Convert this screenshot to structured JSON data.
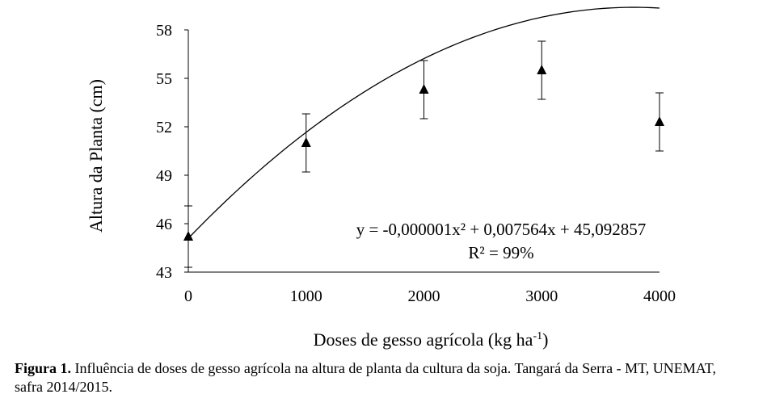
{
  "chart_data": {
    "type": "scatter",
    "xlabel": "Doses de gesso agrícola (kg ha",
    "xlabel_sup": "-1",
    "xlabel_end": ")",
    "ylabel": "Altura da Planta (cm)",
    "x_ticks": [
      0,
      1000,
      2000,
      3000,
      4000
    ],
    "y_ticks": [
      43,
      46,
      49,
      52,
      55,
      58
    ],
    "xlim": [
      0,
      4000
    ],
    "ylim": [
      43,
      58
    ],
    "grid": false,
    "series": [
      {
        "x": [
          0,
          1000,
          2000,
          3000,
          4000
        ],
        "y": [
          45.2,
          51.0,
          54.3,
          55.5,
          52.3
        ],
        "error": [
          1.9,
          1.8,
          1.8,
          1.8,
          1.8
        ],
        "marker": "triangle"
      }
    ],
    "trendline": {
      "type": "polynomial-2",
      "a": -1e-06,
      "b": 0.007564,
      "c": 45.092857
    },
    "equation_text": "y = -0,000001x² + 0,007564x + 45,092857",
    "r2_text": "R² = 99%"
  },
  "caption": {
    "label": "Figura 1.",
    "text": " Influência de doses de gesso agrícola na altura de planta da cultura da soja. Tangará da Serra - MT, UNEMAT, safra 2014/2015."
  }
}
